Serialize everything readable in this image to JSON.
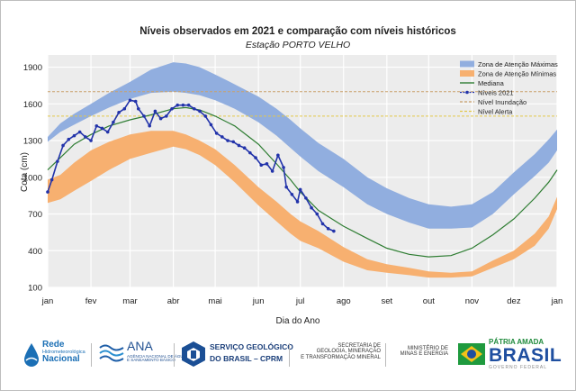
{
  "chart_data": {
    "type": "area",
    "title": "Níveis observados em 2021 e comparação com níveis históricos",
    "subtitle": "Estação PORTO VELHO",
    "xlabel": "Dia do Ano",
    "ylabel": "Cota (cm)",
    "ylim": [
      100,
      2000
    ],
    "xlim": [
      1,
      366
    ],
    "yticks": [
      100,
      400,
      700,
      1000,
      1300,
      1600,
      1900
    ],
    "xticks": [
      {
        "day": 1,
        "label": "jan"
      },
      {
        "day": 32,
        "label": "fev"
      },
      {
        "day": 60,
        "label": "mar"
      },
      {
        "day": 91,
        "label": "abr"
      },
      {
        "day": 121,
        "label": "mai"
      },
      {
        "day": 152,
        "label": "jun"
      },
      {
        "day": 182,
        "label": "jul"
      },
      {
        "day": 213,
        "label": "ago"
      },
      {
        "day": 244,
        "label": "set"
      },
      {
        "day": 274,
        "label": "out"
      },
      {
        "day": 305,
        "label": "nov"
      },
      {
        "day": 335,
        "label": "dez"
      },
      {
        "day": 366,
        "label": "jan"
      }
    ],
    "legend": {
      "position": "top-right",
      "entries": [
        "Zona de Atenção Máximas",
        "Zona de Atenção Mínimas",
        "Mediana",
        "Níveis 2021",
        "Nível Inundação",
        "Nível Alerta"
      ]
    },
    "series": [
      {
        "name": "Zona de Atenção Máximas",
        "kind": "band",
        "color": "#91aedf",
        "x": [
          1,
          10,
          20,
          32,
          45,
          60,
          75,
          91,
          100,
          110,
          121,
          135,
          152,
          165,
          175,
          182,
          195,
          213,
          230,
          244,
          260,
          274,
          290,
          305,
          320,
          335,
          350,
          360,
          366
        ],
        "lower": [
          1290,
          1370,
          1430,
          1500,
          1570,
          1640,
          1690,
          1700,
          1690,
          1670,
          1630,
          1560,
          1450,
          1340,
          1240,
          1170,
          1050,
          920,
          780,
          700,
          630,
          580,
          580,
          590,
          700,
          860,
          1010,
          1120,
          1220
        ],
        "upper": [
          1330,
          1440,
          1520,
          1600,
          1690,
          1780,
          1880,
          1940,
          1930,
          1900,
          1840,
          1760,
          1660,
          1560,
          1470,
          1400,
          1280,
          1150,
          1000,
          910,
          830,
          780,
          760,
          780,
          880,
          1040,
          1190,
          1310,
          1390
        ]
      },
      {
        "name": "Zona de Atenção Mínimas",
        "kind": "band",
        "color": "#f7b070",
        "x": [
          1,
          10,
          20,
          32,
          45,
          60,
          75,
          91,
          100,
          110,
          121,
          135,
          152,
          165,
          175,
          182,
          195,
          213,
          230,
          244,
          260,
          274,
          290,
          305,
          320,
          335,
          350,
          360,
          366
        ],
        "lower": [
          790,
          820,
          890,
          970,
          1060,
          1150,
          1200,
          1250,
          1230,
          1180,
          1100,
          960,
          770,
          640,
          540,
          480,
          420,
          310,
          240,
          220,
          200,
          180,
          180,
          190,
          260,
          330,
          440,
          580,
          740
        ],
        "upper": [
          980,
          1020,
          1120,
          1220,
          1290,
          1350,
          1380,
          1380,
          1350,
          1300,
          1230,
          1100,
          920,
          800,
          700,
          640,
          560,
          430,
          330,
          290,
          260,
          230,
          220,
          230,
          320,
          400,
          540,
          680,
          840
        ]
      },
      {
        "name": "Mediana",
        "kind": "line",
        "color": "#2e7d32",
        "x": [
          1,
          10,
          20,
          32,
          45,
          60,
          75,
          91,
          100,
          110,
          121,
          135,
          152,
          165,
          175,
          182,
          195,
          213,
          230,
          244,
          260,
          274,
          290,
          305,
          320,
          335,
          350,
          360,
          366
        ],
        "values": [
          1060,
          1160,
          1270,
          1350,
          1420,
          1470,
          1510,
          1560,
          1570,
          1550,
          1500,
          1420,
          1270,
          1110,
          980,
          880,
          730,
          600,
          500,
          420,
          370,
          350,
          360,
          420,
          530,
          660,
          830,
          960,
          1060
        ]
      },
      {
        "name": "Níveis 2021",
        "kind": "line",
        "color": "#2233aa",
        "x": [
          1,
          4,
          8,
          12,
          16,
          20,
          24,
          28,
          32,
          36,
          40,
          44,
          48,
          52,
          56,
          60,
          64,
          66,
          70,
          74,
          78,
          82,
          86,
          90,
          94,
          98,
          102,
          106,
          110,
          114,
          118,
          122,
          126,
          130,
          134,
          138,
          142,
          146,
          150,
          154,
          158,
          162,
          166,
          170,
          172,
          176,
          180,
          182,
          186,
          190,
          194,
          198,
          202,
          206
        ],
        "values": [
          880,
          980,
          1130,
          1260,
          1310,
          1340,
          1370,
          1330,
          1300,
          1420,
          1400,
          1370,
          1450,
          1530,
          1560,
          1630,
          1620,
          1560,
          1500,
          1420,
          1540,
          1480,
          1500,
          1560,
          1590,
          1590,
          1590,
          1560,
          1540,
          1500,
          1430,
          1360,
          1330,
          1300,
          1290,
          1260,
          1240,
          1200,
          1160,
          1100,
          1110,
          1050,
          1180,
          1080,
          920,
          860,
          800,
          900,
          830,
          750,
          700,
          620,
          580,
          560
        ]
      },
      {
        "name": "Nível Inundação",
        "kind": "hline",
        "color": "#c9a06a",
        "value": 1700
      },
      {
        "name": "Nível Alerta",
        "kind": "hline",
        "color": "#e3c84a",
        "value": 1500
      }
    ]
  },
  "footer": {
    "logos": [
      {
        "name": "Rede Hidrometeorológica Nacional",
        "lines": [
          "Rede",
          "Hidrometeorológica",
          "Nacional"
        ]
      },
      {
        "name": "ANA",
        "lines": [
          "ANA",
          "AGÊNCIA NACIONAL DE ÁGUAS",
          "E SANEAMENTO BÁSICO"
        ]
      },
      {
        "name": "Serviço Geológico do Brasil",
        "lines": [
          "SERVIÇO GEOLÓGICO",
          "DO BRASIL – CPRM"
        ]
      },
      {
        "name": "Secretaria",
        "lines": [
          "SECRETARIA DE",
          "GEOLOGIA, MINERAÇÃO",
          "E TRANSFORMAÇÃO MINERAL"
        ]
      },
      {
        "name": "Ministério",
        "lines": [
          "MINISTÉRIO DE",
          "MINAS E ENERGIA"
        ]
      },
      {
        "name": "Governo",
        "lines": [
          "PÁTRIA AMADA",
          "BRASIL",
          "GOVERNO FEDERAL"
        ]
      }
    ]
  },
  "colors": {
    "bg_band": "#ececec",
    "grid": "#ffffff",
    "accent_blue": "#1f4fa0",
    "accent_green": "#1f8a3c"
  }
}
